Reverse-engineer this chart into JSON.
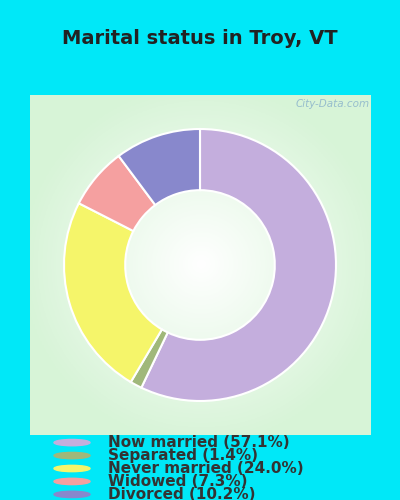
{
  "title": "Marital status in Troy, VT",
  "slices": [
    {
      "label": "Now married (57.1%)",
      "value": 57.1,
      "color": "#c4aedd"
    },
    {
      "label": "Separated (1.4%)",
      "value": 1.4,
      "color": "#a0b87a"
    },
    {
      "label": "Never married (24.0%)",
      "value": 24.0,
      "color": "#f5f56a"
    },
    {
      "label": "Widowed (7.3%)",
      "value": 7.3,
      "color": "#f5a0a0"
    },
    {
      "label": "Divorced (10.2%)",
      "value": 10.2,
      "color": "#8888cc"
    }
  ],
  "bg_cyan": "#00e8f8",
  "title_color": "#222222",
  "legend_text_color": "#333333",
  "title_fontsize": 14,
  "legend_fontsize": 11,
  "watermark": "City-Data.com"
}
